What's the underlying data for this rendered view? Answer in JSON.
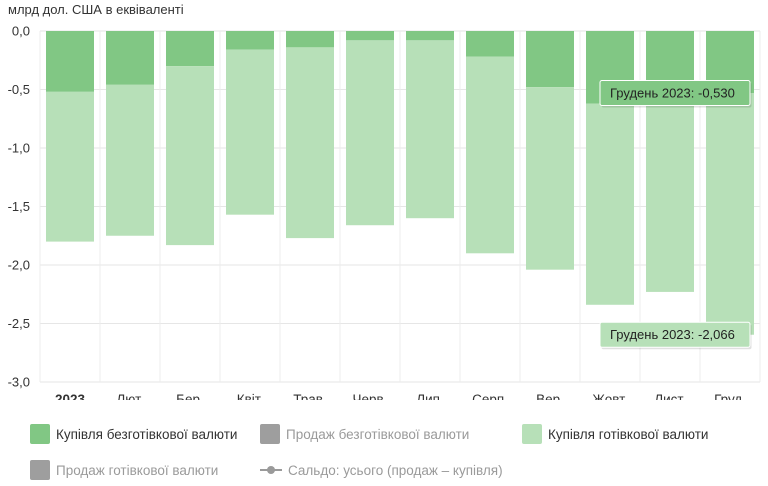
{
  "chart_data": {
    "type": "bar",
    "unit_label": "млрд дол. США в еквіваленті",
    "categories": [
      "2023",
      "Лют.",
      "Бер.",
      "Квіт.",
      "Трав.",
      "Черв.",
      "Лип.",
      "Серп.",
      "Вер.",
      "Жовт.",
      "Лист.",
      "Груд."
    ],
    "ylim": [
      -3.0,
      0.0
    ],
    "yticks": [
      "0,0",
      "-0,5",
      "-1,0",
      "-1,5",
      "-2,0",
      "-2,5",
      "-3,0"
    ],
    "ytick_values": [
      0,
      -0.5,
      -1.0,
      -1.5,
      -2.0,
      -2.5,
      -3.0
    ],
    "stacked": true,
    "grid": true,
    "series": [
      {
        "name": "Купівля безготівкової валюти",
        "color": "#81c784",
        "enabled": true,
        "values": [
          -0.52,
          -0.46,
          -0.3,
          -0.16,
          -0.14,
          -0.08,
          -0.08,
          -0.22,
          -0.48,
          -0.62,
          -0.62,
          -0.53
        ]
      },
      {
        "name": "Продаж безготівкової валюти",
        "color": "#9e9e9e",
        "enabled": false
      },
      {
        "name": "Купівля готівкової валюти",
        "color": "#b7e0b8",
        "enabled": true,
        "values": [
          -1.28,
          -1.29,
          -1.53,
          -1.41,
          -1.63,
          -1.58,
          -1.52,
          -1.68,
          -1.56,
          -1.72,
          -1.61,
          -2.066
        ]
      },
      {
        "name": "Продаж готівкової валюти",
        "color": "#9e9e9e",
        "enabled": false
      },
      {
        "name": "Сальдо: усього (продаж – купівля)",
        "color": "#9e9e9e",
        "enabled": false,
        "kind": "line"
      }
    ],
    "tooltips": [
      {
        "text": "Грудень 2023: -0,530",
        "category": "Груд.",
        "series": "Купівля безготівкової валюти",
        "value": -0.53,
        "color": "#81c784"
      },
      {
        "text": "Грудень 2023: -2,066",
        "category": "Груд.",
        "series": "Купівля готівкової валюти",
        "value": -2.066,
        "color": "#b7e0b8"
      }
    ]
  }
}
